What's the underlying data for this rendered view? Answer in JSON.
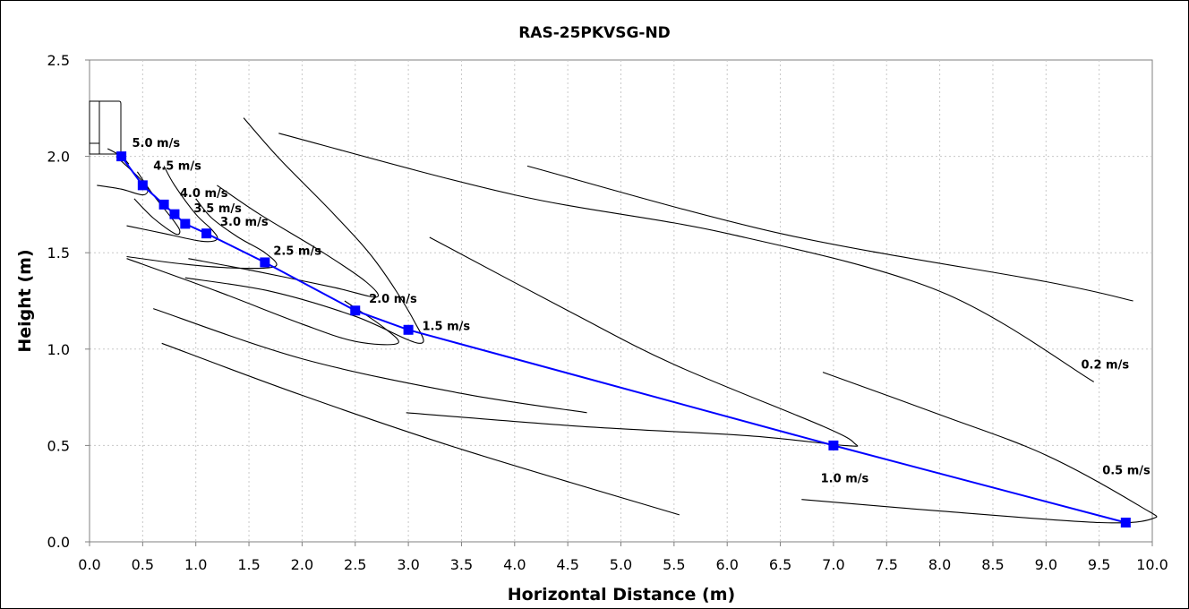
{
  "chart_data": {
    "type": "line",
    "title": "RAS-25PKVSG-ND",
    "xlabel": "Horizontal Distance (m)",
    "ylabel": "Height (m)",
    "xlim": [
      0,
      10
    ],
    "ylim": [
      0,
      2.5
    ],
    "x_ticks": [
      "0.0",
      "0.5",
      "1.0",
      "1.5",
      "2.0",
      "2.5",
      "3.0",
      "3.5",
      "4.0",
      "4.5",
      "5.0",
      "5.5",
      "6.0",
      "6.5",
      "7.0",
      "7.5",
      "8.0",
      "8.5",
      "9.0",
      "9.5",
      "10.0"
    ],
    "y_ticks": [
      "0.0",
      "0.5",
      "1.0",
      "1.5",
      "2.0",
      "2.5"
    ],
    "grid": true,
    "line_color": "#0000ff",
    "contour_color": "#000000",
    "series": [
      {
        "x": [
          0.3,
          0.5,
          0.7,
          0.8,
          0.9,
          1.1,
          1.65,
          2.5,
          3.0,
          7.0,
          9.75
        ],
        "y": [
          2.0,
          1.85,
          1.75,
          1.7,
          1.65,
          1.6,
          1.45,
          1.2,
          1.1,
          0.5,
          0.1
        ]
      }
    ],
    "point_labels": [
      {
        "text": "5.0 m/s",
        "x": 0.4,
        "y": 2.05
      },
      {
        "text": "4.5 m/s",
        "x": 0.6,
        "y": 1.93
      },
      {
        "text": "4.0 m/s",
        "x": 0.85,
        "y": 1.79
      },
      {
        "text": "3.5 m/s",
        "x": 0.98,
        "y": 1.71
      },
      {
        "text": "3.0 m/s",
        "x": 1.23,
        "y": 1.64
      },
      {
        "text": "2.5 m/s",
        "x": 1.73,
        "y": 1.49
      },
      {
        "text": "2.0 m/s",
        "x": 2.63,
        "y": 1.24
      },
      {
        "text": "1.5 m/s",
        "x": 3.13,
        "y": 1.1
      },
      {
        "text": "1.0 m/s",
        "x": 6.88,
        "y": 0.31
      },
      {
        "text": "0.5 m/s",
        "x": 9.53,
        "y": 0.35
      },
      {
        "text": "0.2 m/s",
        "x": 9.33,
        "y": 0.9
      }
    ],
    "contours": [
      {
        "name": "5.0 m/s",
        "points": [
          [
            0.17,
            2.04
          ],
          [
            0.3,
            2.0
          ],
          [
            0.37,
            1.96
          ]
        ]
      },
      {
        "name": "4.5 m/s",
        "points": [
          [
            0.07,
            1.85
          ],
          [
            0.3,
            1.83
          ],
          [
            0.5,
            1.8
          ],
          [
            0.55,
            1.83
          ],
          [
            0.5,
            1.87
          ],
          [
            0.35,
            1.95
          ],
          [
            0.25,
            2.0
          ]
        ]
      },
      {
        "name": "4.0 m/s",
        "points": [
          [
            0.42,
            1.78
          ],
          [
            0.6,
            1.68
          ],
          [
            0.8,
            1.6
          ],
          [
            0.85,
            1.61
          ],
          [
            0.8,
            1.66
          ],
          [
            0.6,
            1.8
          ],
          [
            0.45,
            1.92
          ]
        ]
      },
      {
        "name": "3.5 m/s",
        "points": [
          [
            0.35,
            1.64
          ],
          [
            0.7,
            1.6
          ],
          [
            1.05,
            1.56
          ],
          [
            1.2,
            1.57
          ],
          [
            1.15,
            1.62
          ],
          [
            1.0,
            1.7
          ],
          [
            0.8,
            1.85
          ],
          [
            0.7,
            1.95
          ]
        ]
      },
      {
        "name": "3.0 m/s",
        "points": [
          [
            0.35,
            1.48
          ],
          [
            0.9,
            1.44
          ],
          [
            1.4,
            1.42
          ],
          [
            1.75,
            1.43
          ],
          [
            1.65,
            1.5
          ],
          [
            1.4,
            1.58
          ],
          [
            1.15,
            1.68
          ],
          [
            1.0,
            1.78
          ]
        ]
      },
      {
        "name": "2.5 m/s",
        "points": [
          [
            0.93,
            1.47
          ],
          [
            1.6,
            1.4
          ],
          [
            2.3,
            1.32
          ],
          [
            2.7,
            1.27
          ],
          [
            2.6,
            1.35
          ],
          [
            2.2,
            1.5
          ],
          [
            1.6,
            1.7
          ],
          [
            1.2,
            1.85
          ]
        ]
      },
      {
        "name": "2.0 m/s",
        "points": [
          [
            0.9,
            1.37
          ],
          [
            1.7,
            1.3
          ],
          [
            2.5,
            1.17
          ],
          [
            3.1,
            1.03
          ],
          [
            3.05,
            1.15
          ],
          [
            2.7,
            1.45
          ],
          [
            2.3,
            1.7
          ],
          [
            1.8,
            1.98
          ],
          [
            1.45,
            2.2
          ]
        ]
      },
      {
        "name": "1.5 m/s",
        "points": [
          [
            0.35,
            1.47
          ],
          [
            1.2,
            1.3
          ],
          [
            2.0,
            1.13
          ],
          [
            2.5,
            1.04
          ],
          [
            2.9,
            1.03
          ],
          [
            2.75,
            1.12
          ],
          [
            2.4,
            1.25
          ]
        ]
      },
      {
        "name": "1.0 m/s outer",
        "points": [
          [
            0.6,
            1.21
          ],
          [
            2.0,
            0.95
          ],
          [
            3.5,
            0.77
          ],
          [
            4.68,
            0.67
          ]
        ]
      },
      {
        "name": "1.0 m/s",
        "points": [
          [
            2.98,
            0.67
          ],
          [
            4.6,
            0.6
          ],
          [
            6.2,
            0.55
          ],
          [
            7.1,
            0.5
          ],
          [
            7.2,
            0.51
          ],
          [
            6.9,
            0.6
          ],
          [
            5.5,
            0.92
          ],
          [
            4.5,
            1.2
          ],
          [
            3.2,
            1.58
          ]
        ]
      },
      {
        "name": "0.5 m/s outer",
        "points": [
          [
            0.68,
            1.03
          ],
          [
            2.0,
            0.76
          ],
          [
            3.5,
            0.48
          ],
          [
            5.55,
            0.14
          ]
        ]
      },
      {
        "name": "0.5 m/s",
        "points": [
          [
            6.7,
            0.22
          ],
          [
            8.0,
            0.16
          ],
          [
            9.5,
            0.1
          ],
          [
            10.0,
            0.12
          ],
          [
            9.9,
            0.18
          ],
          [
            9.0,
            0.45
          ],
          [
            8.0,
            0.66
          ],
          [
            6.9,
            0.88
          ]
        ]
      },
      {
        "name": "0.2 m/s",
        "points": [
          [
            1.78,
            2.12
          ],
          [
            4.0,
            1.8
          ],
          [
            6.0,
            1.6
          ],
          [
            8.0,
            1.3
          ],
          [
            9.45,
            0.83
          ]
        ]
      },
      {
        "name": "0.2 m/s outer",
        "points": [
          [
            4.12,
            1.95
          ],
          [
            6.5,
            1.6
          ],
          [
            9.0,
            1.35
          ],
          [
            9.82,
            1.25
          ]
        ]
      }
    ]
  }
}
